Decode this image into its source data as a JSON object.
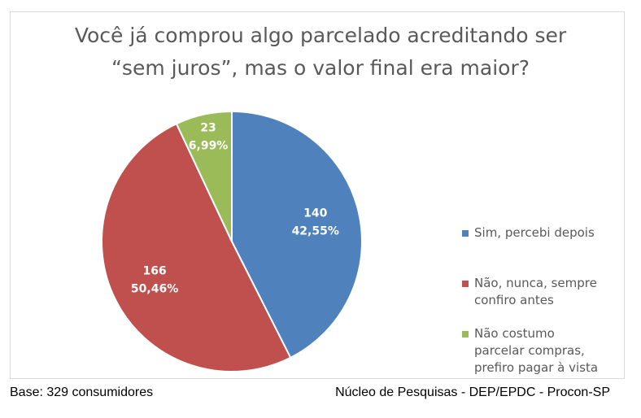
{
  "chart_data": {
    "type": "pie",
    "title": [
      "Você já comprou algo parcelado acreditando ser",
      "“sem juros”, mas o valor final era maior?"
    ],
    "slices": [
      {
        "name": "Sim, percebi depois",
        "label_lines": [
          "Sim, percebi depois"
        ],
        "value": 140,
        "percent": "42,55%",
        "color": "#4f81bd"
      },
      {
        "name": "Não, nunca, sempre confiro antes",
        "label_lines": [
          "Não, nunca, sempre",
          "confiro antes"
        ],
        "value": 166,
        "percent": "50,46%",
        "color": "#c0504d"
      },
      {
        "name": "Não costumo parcelar compras, prefiro pagar à vista",
        "label_lines": [
          "Não costumo",
          "parcelar compras,",
          "prefiro pagar à vista"
        ],
        "value": 23,
        "percent": "6,99%",
        "color": "#9bbb59"
      }
    ],
    "legend_position": "right",
    "data_label_color": "#ffffff"
  },
  "footer": {
    "base": "Base: 329 consumidores",
    "source": "Núcleo de Pesquisas - DEP/EPDC - Procon-SP"
  }
}
